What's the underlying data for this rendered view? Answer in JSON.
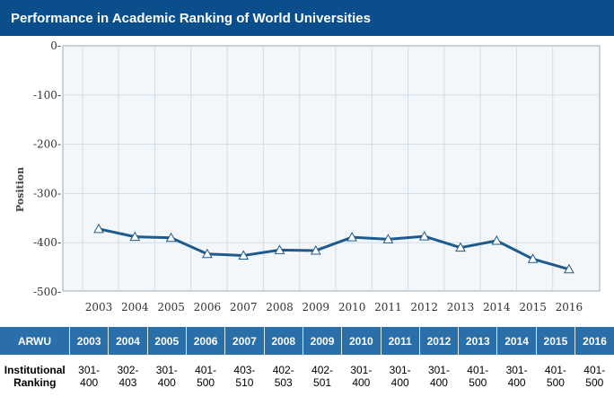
{
  "header": {
    "title": "Performance in Academic Ranking of World Universities"
  },
  "chart_data": {
    "type": "line",
    "x": [
      "2003",
      "2004",
      "2005",
      "2006",
      "2007",
      "2008",
      "2009",
      "2010",
      "2011",
      "2012",
      "2013",
      "2014",
      "2015",
      "2016"
    ],
    "series": [
      {
        "values": [
          -372,
          -388,
          -390,
          -423,
          -426,
          -415,
          -416,
          -389,
          -393,
          -387,
          -410,
          -396,
          -433,
          -454
        ]
      }
    ],
    "ylabel": "Position",
    "yticks": [
      "0-",
      "-100-",
      "-200-",
      "-300-",
      "-400-",
      "-500-"
    ],
    "ylim": [
      -500,
      0
    ],
    "grid": true,
    "colors": {
      "line": "#1f5a8c",
      "plot_bg": "#f3f7fa",
      "grid": "#cfdde8"
    }
  },
  "table": {
    "label": "ARWU",
    "years": [
      "2003",
      "2004",
      "2005",
      "2006",
      "2007",
      "2008",
      "2009",
      "2010",
      "2011",
      "2012",
      "2013",
      "2014",
      "2015",
      "2016"
    ],
    "row_label": [
      "Institutional",
      "Ranking"
    ],
    "rankings": [
      [
        "301-",
        "400"
      ],
      [
        "302-",
        "403"
      ],
      [
        "301-",
        "400"
      ],
      [
        "401-",
        "500"
      ],
      [
        "403-",
        "510"
      ],
      [
        "402-",
        "503"
      ],
      [
        "402-",
        "501"
      ],
      [
        "301-",
        "400"
      ],
      [
        "301-",
        "400"
      ],
      [
        "301-",
        "400"
      ],
      [
        "401-",
        "500"
      ],
      [
        "301-",
        "400"
      ],
      [
        "401-",
        "500"
      ],
      [
        "401-",
        "500"
      ]
    ]
  }
}
